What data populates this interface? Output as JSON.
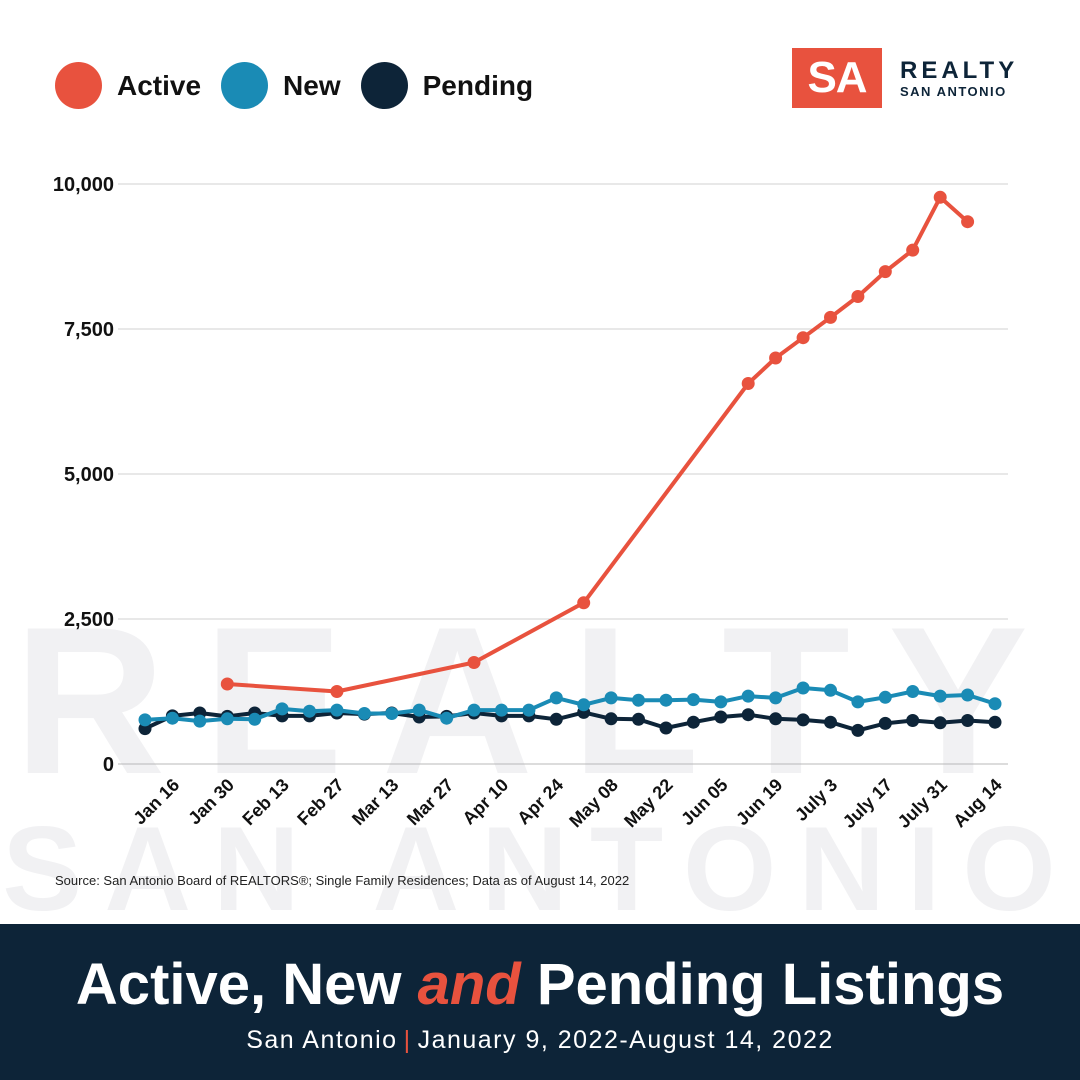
{
  "watermark": {
    "line1": "REALTY",
    "line2": "SAN ANTONIO"
  },
  "legend": [
    {
      "label": "Active",
      "color": "#e8523e"
    },
    {
      "label": "New",
      "color": "#1a8bb5"
    },
    {
      "label": "Pending",
      "color": "#0d2438"
    }
  ],
  "logo": {
    "mark": "SA",
    "line1": "REALTY",
    "line2": "SAN ANTONIO"
  },
  "source": "Source: San Antonio Board of REALTORS®; Single Family Residences; Data as of August 14, 2022",
  "footer": {
    "title_part1": "Active, New ",
    "title_accent": "and",
    "title_part2": " Pending Listings",
    "subtitle_place": "San Antonio",
    "subtitle_sep": "|",
    "subtitle_dates": "January 9, 2022-August 14, 2022"
  },
  "chart_data": {
    "type": "line",
    "y_ticks": [
      0,
      2500,
      5000,
      7500,
      10000
    ],
    "y_tick_labels": [
      "0",
      "2,500",
      "5,000",
      "7,500",
      "10,000"
    ],
    "ylim": [
      0,
      10000
    ],
    "grid": true,
    "x_tick_labels": [
      "Jan 16",
      "Jan 30",
      "Feb 13",
      "Feb 27",
      "Mar 13",
      "Mar 27",
      "Apr 10",
      "Apr 24",
      "May 08",
      "May 22",
      "Jun 05",
      "Jun 19",
      "July 3",
      "July 17",
      "July 31",
      "Aug 14"
    ],
    "x": [
      "Jan 9",
      "Jan 16",
      "Jan 23",
      "Jan 30",
      "Feb 6",
      "Feb 13",
      "Feb 20",
      "Feb 27",
      "Mar 6",
      "Mar 13",
      "Mar 20",
      "Mar 27",
      "Apr 3",
      "Apr 10",
      "Apr 17",
      "Apr 24",
      "May 1",
      "May 08",
      "May 15",
      "May 22",
      "May 29",
      "Jun 05",
      "Jun 12",
      "Jun 19",
      "Jun 26",
      "July 3",
      "July 10",
      "July 17",
      "July 24",
      "July 31",
      "Aug 7",
      "Aug 14"
    ],
    "series": [
      {
        "name": "Active",
        "color": "#e8523e",
        "values": [
          null,
          null,
          null,
          1380,
          null,
          null,
          null,
          1250,
          null,
          null,
          null,
          null,
          1750,
          null,
          null,
          null,
          2780,
          null,
          null,
          null,
          null,
          null,
          6560,
          7000,
          7350,
          7700,
          8060,
          8490,
          8860,
          9770,
          9350,
          null
        ]
      },
      {
        "name": "New",
        "color": "#1a8bb5",
        "values": [
          760,
          790,
          740,
          780,
          770,
          950,
          910,
          930,
          870,
          870,
          930,
          790,
          930,
          930,
          930,
          1140,
          1020,
          1140,
          1100,
          1100,
          1110,
          1070,
          1170,
          1140,
          1310,
          1270,
          1070,
          1150,
          1250,
          1170,
          1190,
          1040
        ]
      },
      {
        "name": "Pending",
        "color": "#0d2438",
        "values": [
          610,
          830,
          880,
          820,
          880,
          830,
          830,
          880,
          860,
          880,
          810,
          820,
          880,
          830,
          830,
          770,
          890,
          780,
          770,
          620,
          720,
          810,
          850,
          780,
          760,
          720,
          580,
          700,
          750,
          710,
          750,
          720
        ]
      }
    ]
  }
}
